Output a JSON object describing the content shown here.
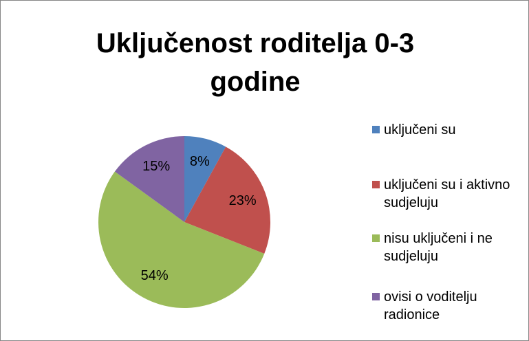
{
  "chart_data": {
    "type": "pie",
    "title": "Uključenost roditelja 0-3 godine",
    "categories": [
      "uključeni su",
      "uključeni su i aktivno sudjeluju",
      "nisu uključeni i ne sudjeluju",
      "ovisi o voditelju radionice"
    ],
    "values": [
      8,
      23,
      54,
      15
    ],
    "value_labels": [
      "8%",
      "23%",
      "54%",
      "15%"
    ],
    "colors": [
      "#4f81bd",
      "#c0504d",
      "#9bbb59",
      "#8064a2"
    ],
    "legend": "right"
  }
}
